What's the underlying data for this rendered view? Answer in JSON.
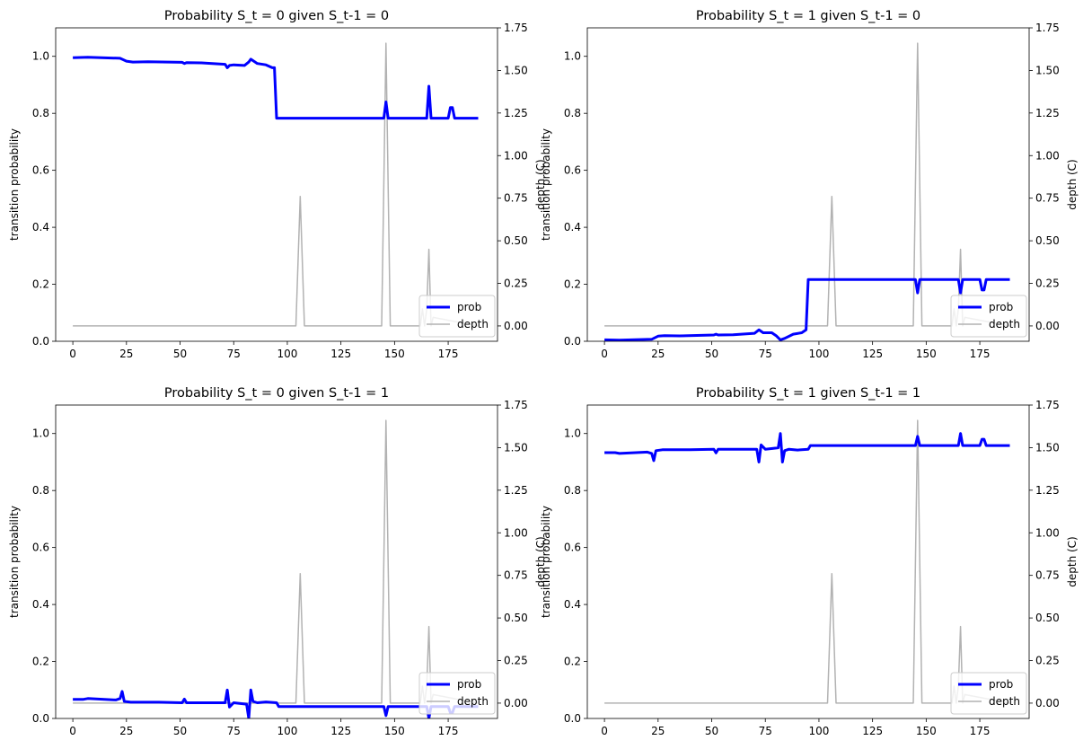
{
  "chart_data": [
    {
      "type": "line",
      "title": "Probability S_t = 0 given S_t-1 = 0",
      "ylabel": "transition probability",
      "y2label": "depth (C)",
      "xlim": [
        -8,
        198
      ],
      "ylim": [
        0,
        1.1
      ],
      "y2lim": [
        -0.09,
        1.75
      ],
      "xticks": [
        0,
        25,
        50,
        75,
        100,
        125,
        150,
        175
      ],
      "yticks": [
        0.0,
        0.2,
        0.4,
        0.6,
        0.8,
        1.0
      ],
      "y2ticks": [
        0.0,
        0.25,
        0.5,
        0.75,
        1.0,
        1.25,
        1.5,
        1.75
      ],
      "legend": {
        "position": "lower-right",
        "entries": [
          "prob",
          "depth"
        ]
      },
      "series": [
        {
          "name": "prob",
          "axis": "left",
          "color": "#0000ff",
          "x": [
            0,
            7,
            22,
            25,
            28,
            35,
            51,
            52,
            53,
            60,
            71,
            72,
            73,
            75,
            80,
            82,
            83,
            86,
            90,
            93,
            94,
            95,
            145,
            146,
            147,
            148,
            149,
            165,
            166,
            167,
            175,
            176,
            177,
            178,
            189
          ],
          "y": [
            0.995,
            0.997,
            0.993,
            0.983,
            0.98,
            0.981,
            0.979,
            0.975,
            0.978,
            0.977,
            0.972,
            0.96,
            0.968,
            0.97,
            0.968,
            0.98,
            0.99,
            0.975,
            0.97,
            0.96,
            0.96,
            0.783,
            0.783,
            0.84,
            0.783,
            0.783,
            0.783,
            0.783,
            0.895,
            0.783,
            0.783,
            0.82,
            0.82,
            0.783,
            0.783
          ]
        },
        {
          "name": "depth",
          "axis": "right",
          "color": "#b2b2b2",
          "x": [
            0,
            104,
            106,
            108,
            144,
            146,
            148,
            162,
            163,
            164,
            165,
            166,
            167,
            168,
            189
          ],
          "y": [
            0,
            0,
            0.76,
            0,
            0,
            1.66,
            0,
            0,
            0.1,
            0,
            0.1,
            0.45,
            0,
            0.05,
            0
          ]
        }
      ]
    },
    {
      "type": "line",
      "title": "Probability S_t = 1 given S_t-1 = 0",
      "ylabel": "transition probability",
      "y2label": "depth (C)",
      "xlim": [
        -8,
        198
      ],
      "ylim": [
        0,
        1.1
      ],
      "y2lim": [
        -0.09,
        1.75
      ],
      "xticks": [
        0,
        25,
        50,
        75,
        100,
        125,
        150,
        175
      ],
      "yticks": [
        0.0,
        0.2,
        0.4,
        0.6,
        0.8,
        1.0
      ],
      "y2ticks": [
        0.0,
        0.25,
        0.5,
        0.75,
        1.0,
        1.25,
        1.5,
        1.75
      ],
      "legend": {
        "position": "lower-right",
        "entries": [
          "prob",
          "depth"
        ]
      },
      "series": [
        {
          "name": "prob",
          "axis": "left",
          "color": "#0000ff",
          "x": [
            0,
            7,
            22,
            25,
            28,
            35,
            51,
            52,
            53,
            60,
            70,
            72,
            74,
            78,
            80,
            82,
            84,
            88,
            92,
            94,
            95,
            145,
            146,
            147,
            148,
            165,
            166,
            167,
            175,
            176,
            177,
            178,
            189
          ],
          "y": [
            0.005,
            0.004,
            0.007,
            0.018,
            0.02,
            0.019,
            0.022,
            0.025,
            0.022,
            0.023,
            0.028,
            0.04,
            0.03,
            0.03,
            0.02,
            0.005,
            0.01,
            0.025,
            0.03,
            0.04,
            0.217,
            0.217,
            0.17,
            0.217,
            0.217,
            0.217,
            0.17,
            0.217,
            0.217,
            0.18,
            0.18,
            0.217,
            0.217
          ]
        },
        {
          "name": "depth",
          "axis": "right",
          "color": "#b2b2b2",
          "x": [
            0,
            104,
            106,
            108,
            144,
            146,
            148,
            162,
            163,
            164,
            165,
            166,
            167,
            168,
            189
          ],
          "y": [
            0,
            0,
            0.76,
            0,
            0,
            1.66,
            0,
            0,
            0.1,
            0,
            0.1,
            0.45,
            0,
            0.05,
            0
          ]
        }
      ]
    },
    {
      "type": "line",
      "title": "Probability S_t = 0 given S_t-1 = 1",
      "ylabel": "transition probability",
      "y2label": "depth (C)",
      "xlim": [
        -8,
        198
      ],
      "ylim": [
        0,
        1.1
      ],
      "y2lim": [
        -0.09,
        1.75
      ],
      "xticks": [
        0,
        25,
        50,
        75,
        100,
        125,
        150,
        175
      ],
      "yticks": [
        0.0,
        0.2,
        0.4,
        0.6,
        0.8,
        1.0
      ],
      "y2ticks": [
        0.0,
        0.25,
        0.5,
        0.75,
        1.0,
        1.25,
        1.5,
        1.75
      ],
      "legend": {
        "position": "lower-right",
        "entries": [
          "prob",
          "depth"
        ]
      },
      "series": [
        {
          "name": "prob",
          "axis": "left",
          "color": "#0000ff",
          "x": [
            0,
            5,
            7,
            20,
            22,
            23,
            24,
            27,
            40,
            51,
            52,
            53,
            60,
            71,
            72,
            73,
            75,
            81,
            82,
            83,
            84,
            86,
            90,
            95,
            96,
            145,
            146,
            147,
            148,
            165,
            166,
            167,
            175,
            176,
            177,
            178,
            189
          ],
          "y": [
            0.067,
            0.067,
            0.07,
            0.065,
            0.07,
            0.095,
            0.06,
            0.057,
            0.057,
            0.055,
            0.068,
            0.055,
            0.055,
            0.055,
            0.1,
            0.04,
            0.055,
            0.05,
            0.0,
            0.1,
            0.06,
            0.055,
            0.058,
            0.055,
            0.042,
            0.042,
            0.01,
            0.042,
            0.042,
            0.042,
            0.0,
            0.042,
            0.042,
            0.02,
            0.02,
            0.042,
            0.042
          ]
        },
        {
          "name": "depth",
          "axis": "right",
          "color": "#b2b2b2",
          "x": [
            0,
            104,
            106,
            108,
            144,
            146,
            148,
            162,
            163,
            164,
            165,
            166,
            167,
            168,
            189
          ],
          "y": [
            0,
            0,
            0.76,
            0,
            0,
            1.66,
            0,
            0,
            0.1,
            0,
            0.1,
            0.45,
            0,
            0.05,
            0
          ]
        }
      ]
    },
    {
      "type": "line",
      "title": "Probability S_t = 1 given S_t-1 = 1",
      "ylabel": "transition probability",
      "y2label": "depth (C)",
      "xlim": [
        -8,
        198
      ],
      "ylim": [
        0,
        1.1
      ],
      "y2lim": [
        -0.09,
        1.75
      ],
      "xticks": [
        0,
        25,
        50,
        75,
        100,
        125,
        150,
        175
      ],
      "yticks": [
        0.0,
        0.2,
        0.4,
        0.6,
        0.8,
        1.0
      ],
      "y2ticks": [
        0.0,
        0.25,
        0.5,
        0.75,
        1.0,
        1.25,
        1.5,
        1.75
      ],
      "legend": {
        "position": "lower-right",
        "entries": [
          "prob",
          "depth"
        ]
      },
      "series": [
        {
          "name": "prob",
          "axis": "left",
          "color": "#0000ff",
          "x": [
            0,
            5,
            7,
            20,
            22,
            23,
            24,
            27,
            40,
            51,
            52,
            53,
            60,
            71,
            72,
            73,
            75,
            81,
            82,
            83,
            84,
            86,
            90,
            95,
            96,
            145,
            146,
            147,
            148,
            165,
            166,
            167,
            175,
            176,
            177,
            178,
            189
          ],
          "y": [
            0.933,
            0.933,
            0.93,
            0.935,
            0.93,
            0.905,
            0.94,
            0.943,
            0.943,
            0.945,
            0.932,
            0.945,
            0.945,
            0.945,
            0.9,
            0.96,
            0.945,
            0.95,
            1.0,
            0.9,
            0.94,
            0.945,
            0.942,
            0.945,
            0.958,
            0.958,
            0.99,
            0.958,
            0.958,
            0.958,
            1.0,
            0.958,
            0.958,
            0.98,
            0.98,
            0.958,
            0.958
          ]
        },
        {
          "name": "depth",
          "axis": "right",
          "color": "#b2b2b2",
          "x": [
            0,
            104,
            106,
            108,
            144,
            146,
            148,
            162,
            163,
            164,
            165,
            166,
            167,
            168,
            189
          ],
          "y": [
            0,
            0,
            0.76,
            0,
            0,
            1.66,
            0,
            0,
            0.1,
            0,
            0.1,
            0.45,
            0,
            0.05,
            0
          ]
        }
      ]
    }
  ]
}
